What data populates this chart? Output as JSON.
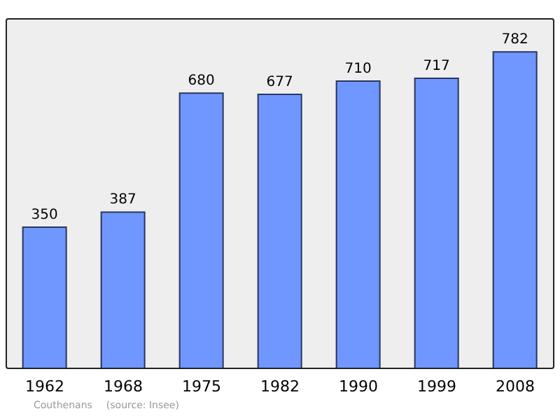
{
  "chart_data": {
    "type": "bar",
    "categories": [
      "1962",
      "1968",
      "1975",
      "1982",
      "1990",
      "1999",
      "2008"
    ],
    "values": [
      350,
      387,
      680,
      677,
      710,
      717,
      782
    ],
    "color": "#7097ff",
    "ylim": [
      0,
      865
    ],
    "tick_labels": "x",
    "data_labels": true,
    "annotations": [
      "Couthenans",
      "(source: Insee)"
    ]
  }
}
